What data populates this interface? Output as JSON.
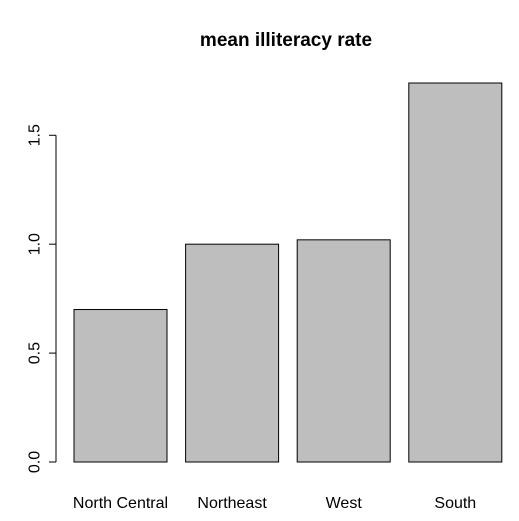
{
  "chart_data": {
    "type": "bar",
    "title": "mean illiteracy rate",
    "xlabel": "",
    "ylabel": "",
    "categories": [
      "North Central",
      "Northeast",
      "West",
      "South"
    ],
    "values": [
      0.7,
      1.0,
      1.02,
      1.74
    ],
    "ylim": [
      0,
      1.74
    ],
    "yticks": [
      0.0,
      0.5,
      1.0,
      1.5
    ],
    "ytick_labels": [
      "0.0",
      "0.5",
      "1.0",
      "1.5"
    ],
    "grid": false,
    "bar_color": "#bebebe",
    "edge_color": "#000000"
  }
}
